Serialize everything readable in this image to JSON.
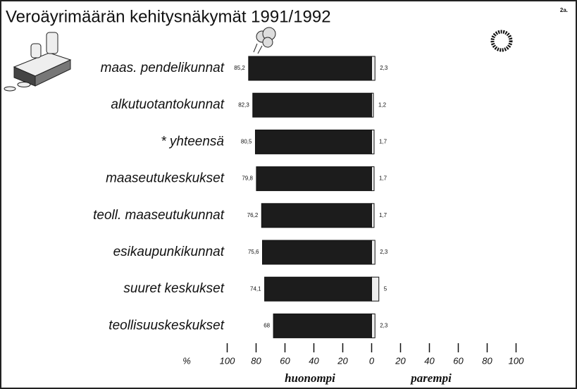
{
  "chart_data": {
    "type": "diverging_bar",
    "title": "Veroäyrimäärän kehitysnäkymät 1991/1992",
    "page_label": "2a.",
    "x_unit": "%",
    "categories": [
      "maas. pendelikunnat",
      "alkutuotantokunnat",
      "* yhteensä",
      "maaseutukeskukset",
      "teoll. maaseutukunnat",
      "esikaupunkikunnat",
      "suuret keskukset",
      "teollisuuskeskukset"
    ],
    "series": [
      {
        "name": "huonompi",
        "color": "#1c1c1c",
        "values": [
          -85.2,
          -82.3,
          -80.5,
          -79.8,
          -76.2,
          -75.6,
          -74.1,
          -68
        ],
        "value_labels": [
          "85,2",
          "82,3",
          "80,5",
          "79,8",
          "76,2",
          "75,6",
          "74,1",
          "68"
        ]
      },
      {
        "name": "parempi",
        "color": "#eeeeee",
        "values": [
          2.3,
          1.2,
          1.7,
          1.7,
          1.7,
          2.3,
          5,
          2.3
        ],
        "value_labels": [
          "2,3",
          "1,2",
          "1,7",
          "1,7",
          "1,7",
          "2,3",
          "5",
          "2,3"
        ]
      }
    ],
    "xlim": [
      -100,
      100
    ],
    "xticks": [
      {
        "value": -100,
        "label": "100"
      },
      {
        "value": -80,
        "label": "80"
      },
      {
        "value": -60,
        "label": "60"
      },
      {
        "value": -40,
        "label": "40"
      },
      {
        "value": -20,
        "label": "20"
      },
      0,
      20,
      40,
      60,
      80,
      100
    ]
  }
}
